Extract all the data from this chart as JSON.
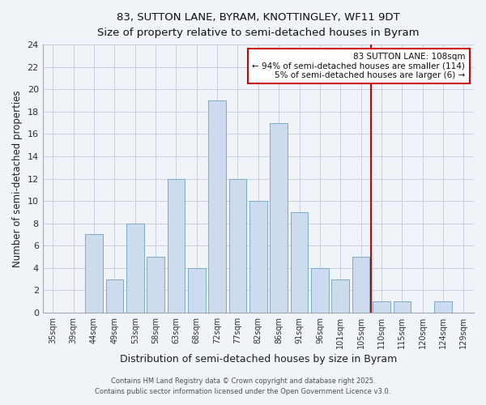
{
  "title1": "83, SUTTON LANE, BYRAM, KNOTTINGLEY, WF11 9DT",
  "title2": "Size of property relative to semi-detached houses in Byram",
  "xlabel": "Distribution of semi-detached houses by size in Byram",
  "ylabel": "Number of semi-detached properties",
  "categories": [
    "35sqm",
    "39sqm",
    "44sqm",
    "49sqm",
    "53sqm",
    "58sqm",
    "63sqm",
    "68sqm",
    "72sqm",
    "77sqm",
    "82sqm",
    "86sqm",
    "91sqm",
    "96sqm",
    "101sqm",
    "105sqm",
    "110sqm",
    "115sqm",
    "120sqm",
    "124sqm",
    "129sqm"
  ],
  "values": [
    0,
    0,
    7,
    3,
    8,
    5,
    12,
    4,
    19,
    12,
    10,
    17,
    9,
    4,
    3,
    5,
    1,
    1,
    0,
    1,
    0
  ],
  "highlight_index": 15,
  "bar_color": "#ccdcee",
  "bar_edge_color": "#7aaac8",
  "red_line_color": "#cc0000",
  "annotation_text": "83 SUTTON LANE: 108sqm\n← 94% of semi-detached houses are smaller (114)\n5% of semi-detached houses are larger (6) →",
  "annotation_box_edge_color": "#cc0000",
  "footer1": "Contains HM Land Registry data © Crown copyright and database right 2025.",
  "footer2": "Contains public sector information licensed under the Open Government Licence v3.0.",
  "ylim": [
    0,
    24
  ],
  "background_color": "#f0f4f8",
  "grid_color": "#c8d0dc"
}
